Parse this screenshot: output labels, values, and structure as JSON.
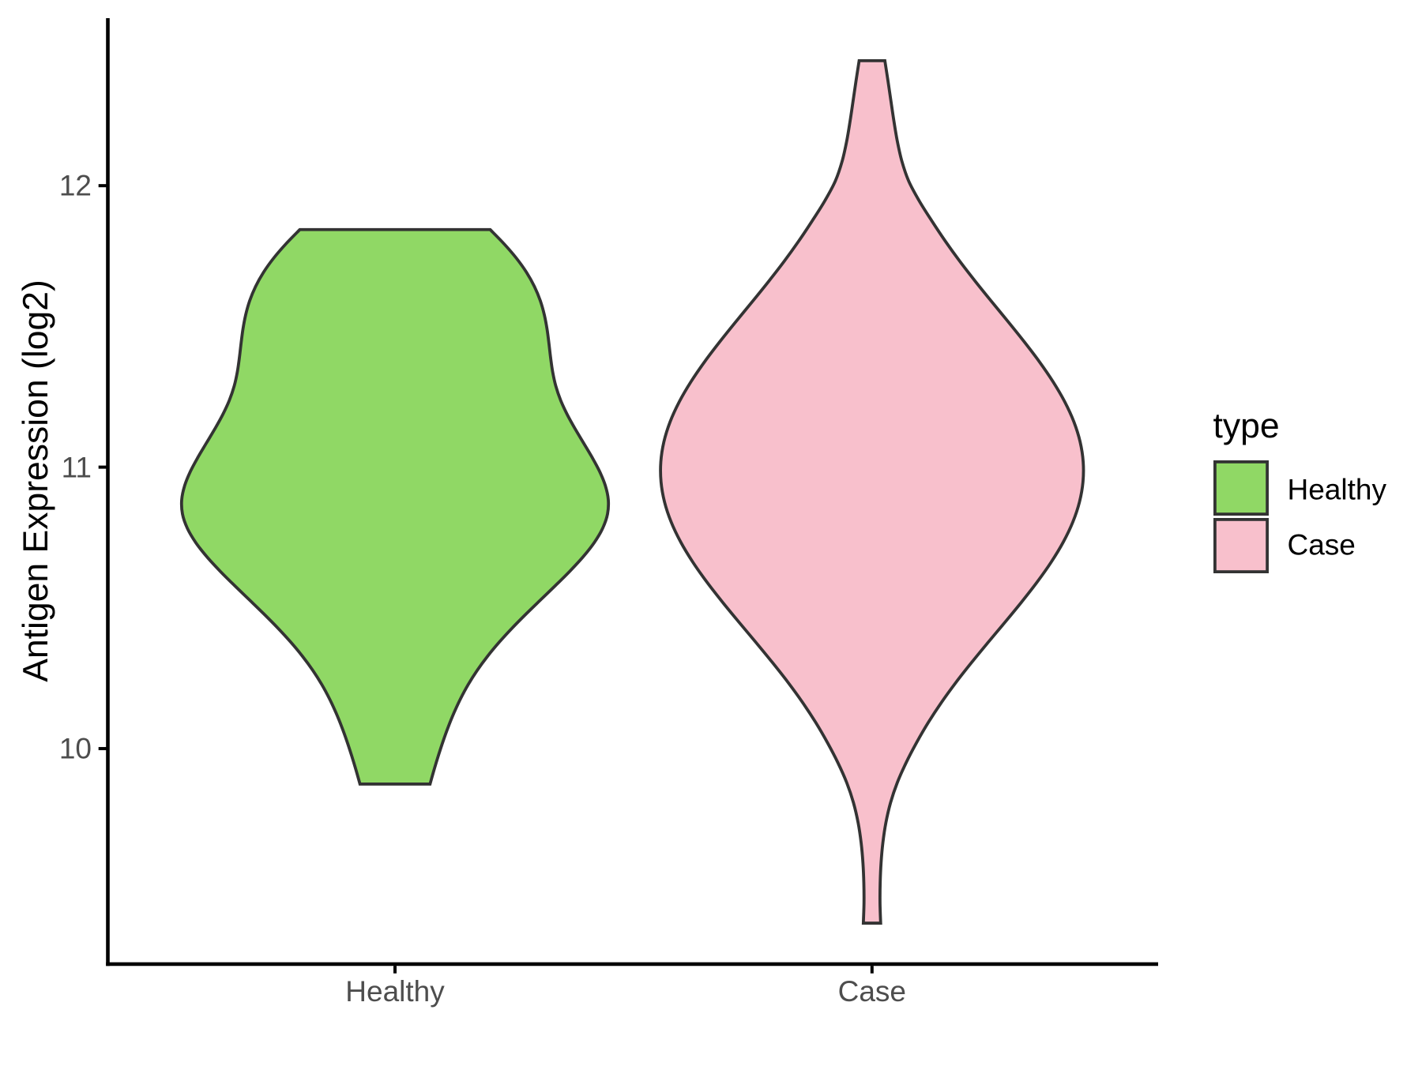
{
  "chart_data": {
    "type": "violin",
    "title": "",
    "xlabel": "",
    "ylabel": "Antigen Expression (log2)",
    "categories": [
      "Healthy",
      "Case"
    ],
    "y_ticks": [
      12,
      11,
      10
    ],
    "ylim": [
      9.23,
      12.6
    ],
    "grid": false,
    "legend_position": "right",
    "legend": {
      "title": "type",
      "entries": [
        {
          "label": "Healthy",
          "fill": "#90D865"
        },
        {
          "label": "Case",
          "fill": "#F8C0CC"
        }
      ]
    },
    "outline_color": "#333333",
    "axis_color": "#000000",
    "axis_text_color": "#4D4D4D",
    "series": [
      {
        "name": "Healthy",
        "fill": "#90D865",
        "trim_range": [
          9.874,
          11.844
        ],
        "max_width": 0.8945,
        "profile": [
          [
            11.844,
            0.4461
          ],
          [
            11.7935,
            0.5111
          ],
          [
            11.743,
            0.5685
          ],
          [
            11.6925,
            0.6162
          ],
          [
            11.6419,
            0.6536
          ],
          [
            11.5914,
            0.6812
          ],
          [
            11.5409,
            0.7002
          ],
          [
            11.4904,
            0.7129
          ],
          [
            11.4399,
            0.7217
          ],
          [
            11.3894,
            0.7295
          ],
          [
            11.3389,
            0.7391
          ],
          [
            11.2884,
            0.7538
          ],
          [
            11.2378,
            0.7765
          ],
          [
            11.1873,
            0.8073
          ],
          [
            11.1368,
            0.844
          ],
          [
            11.0863,
            0.8838
          ],
          [
            11.0358,
            0.9234
          ],
          [
            10.9853,
            0.959
          ],
          [
            10.9348,
            0.986
          ],
          [
            10.8843,
            1.0
          ],
          [
            10.8337,
            0.9965
          ],
          [
            10.7832,
            0.9739
          ],
          [
            10.7327,
            0.9348
          ],
          [
            10.6822,
            0.8828
          ],
          [
            10.6317,
            0.8215
          ],
          [
            10.5812,
            0.7547
          ],
          [
            10.5307,
            0.6856
          ],
          [
            10.4802,
            0.617
          ],
          [
            10.4296,
            0.551
          ],
          [
            10.3791,
            0.4898
          ],
          [
            10.3286,
            0.4344
          ],
          [
            10.2781,
            0.3855
          ],
          [
            10.2276,
            0.3432
          ],
          [
            10.1771,
            0.3072
          ],
          [
            10.1266,
            0.2763
          ],
          [
            10.0761,
            0.2492
          ],
          [
            10.0255,
            0.2251
          ],
          [
            9.975,
            0.2033
          ],
          [
            9.9245,
            0.1831
          ],
          [
            9.874,
            0.1643
          ]
        ]
      },
      {
        "name": "Case",
        "fill": "#F8C0CC",
        "trim_range": [
          9.38,
          12.444
        ],
        "max_width": 0.8857,
        "profile": [
          [
            12.444,
            0.0609
          ],
          [
            12.3727,
            0.0756
          ],
          [
            12.3015,
            0.0895
          ],
          [
            12.2302,
            0.1036
          ],
          [
            12.159,
            0.1196
          ],
          [
            12.0877,
            0.1411
          ],
          [
            12.0165,
            0.1737
          ],
          [
            11.9452,
            0.2242
          ],
          [
            11.874,
            0.284
          ],
          [
            11.8027,
            0.3474
          ],
          [
            11.7314,
            0.4158
          ],
          [
            11.6602,
            0.4892
          ],
          [
            11.5889,
            0.5658
          ],
          [
            11.5177,
            0.6436
          ],
          [
            11.4464,
            0.7198
          ],
          [
            11.3752,
            0.7919
          ],
          [
            11.3039,
            0.8569
          ],
          [
            11.2327,
            0.9123
          ],
          [
            11.1614,
            0.9558
          ],
          [
            11.0901,
            0.9854
          ],
          [
            11.0189,
            1.0
          ],
          [
            10.9476,
            0.999
          ],
          [
            10.8764,
            0.9825
          ],
          [
            10.8051,
            0.951
          ],
          [
            10.7339,
            0.9058
          ],
          [
            10.6626,
            0.8485
          ],
          [
            10.5913,
            0.7815
          ],
          [
            10.5201,
            0.7076
          ],
          [
            10.4488,
            0.6295
          ],
          [
            10.3776,
            0.55
          ],
          [
            10.3063,
            0.472
          ],
          [
            10.2351,
            0.3975
          ],
          [
            10.1638,
            0.3286
          ],
          [
            10.0926,
            0.2664
          ],
          [
            10.0213,
            0.2111
          ],
          [
            9.95,
            0.1616
          ],
          [
            9.8788,
            0.1196
          ],
          [
            9.8075,
            0.0877
          ],
          [
            9.7363,
            0.0656
          ],
          [
            9.665,
            0.0514
          ],
          [
            9.5938,
            0.0429
          ],
          [
            9.5225,
            0.0387
          ],
          [
            9.4513,
            0.0379
          ],
          [
            9.38,
            0.041
          ]
        ]
      }
    ]
  },
  "y_axis": {
    "title": "Antigen Expression (log2)",
    "tick_labels": [
      "12",
      "11",
      "10"
    ]
  },
  "x_axis": {
    "category_labels": [
      "Healthy",
      "Case"
    ]
  },
  "legend": {
    "title": "type",
    "labels": [
      "Healthy",
      "Case"
    ]
  }
}
